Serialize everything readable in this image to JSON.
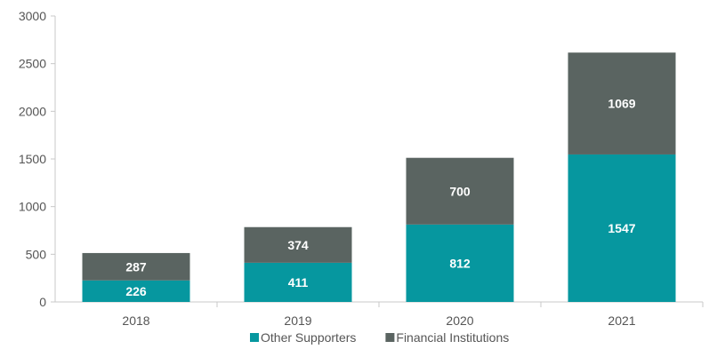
{
  "chart_data": {
    "type": "bar",
    "stacked": true,
    "categories": [
      "2018",
      "2019",
      "2020",
      "2021"
    ],
    "series": [
      {
        "name": "Other Supporters",
        "values": [
          226,
          411,
          812,
          1547
        ],
        "color": "#06979f"
      },
      {
        "name": "Financial Institutions",
        "values": [
          287,
          374,
          700,
          1069
        ],
        "color": "#5a6461"
      }
    ],
    "ylim": [
      0,
      3000
    ],
    "yticks": [
      0,
      500,
      1000,
      1500,
      2000,
      2500,
      3000
    ],
    "grid": false,
    "legend": "bottom",
    "data_labels": true
  }
}
